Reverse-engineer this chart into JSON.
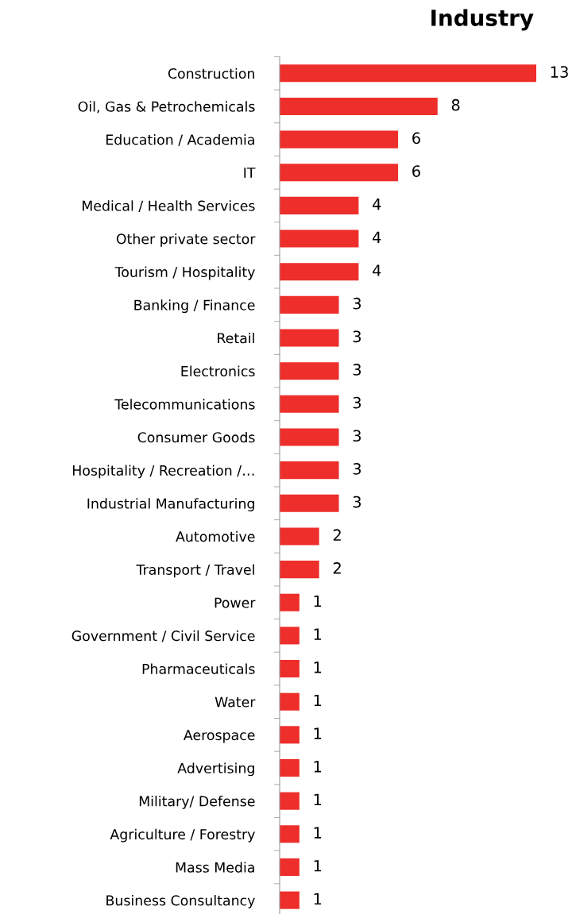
{
  "chart_data": {
    "type": "bar",
    "orientation": "horizontal",
    "title": "Industry",
    "categories": [
      "Construction",
      "Oil, Gas & Petrochemicals",
      "Education / Academia",
      "IT",
      "Medical / Health Services",
      "Other private sector",
      "Tourism / Hospitality",
      "Banking / Finance",
      "Retail",
      "Electronics",
      "Telecommunications",
      "Consumer Goods",
      "Hospitality / Recreation /…",
      "Industrial Manufacturing",
      "Automotive",
      "Transport / Travel",
      "Power",
      "Government / Civil Service",
      "Pharmaceuticals",
      "Water",
      "Aerospace",
      "Advertising",
      "Military/ Defense",
      "Agriculture / Forestry",
      "Mass Media",
      "Business Consultancy"
    ],
    "values": [
      13,
      8,
      6,
      6,
      4,
      4,
      4,
      3,
      3,
      3,
      3,
      3,
      3,
      3,
      2,
      2,
      1,
      1,
      1,
      1,
      1,
      1,
      1,
      1,
      1,
      1
    ],
    "data_labels": true,
    "tick_labels": "y",
    "color": "#ee2e2a",
    "grid": false,
    "legend": false
  }
}
